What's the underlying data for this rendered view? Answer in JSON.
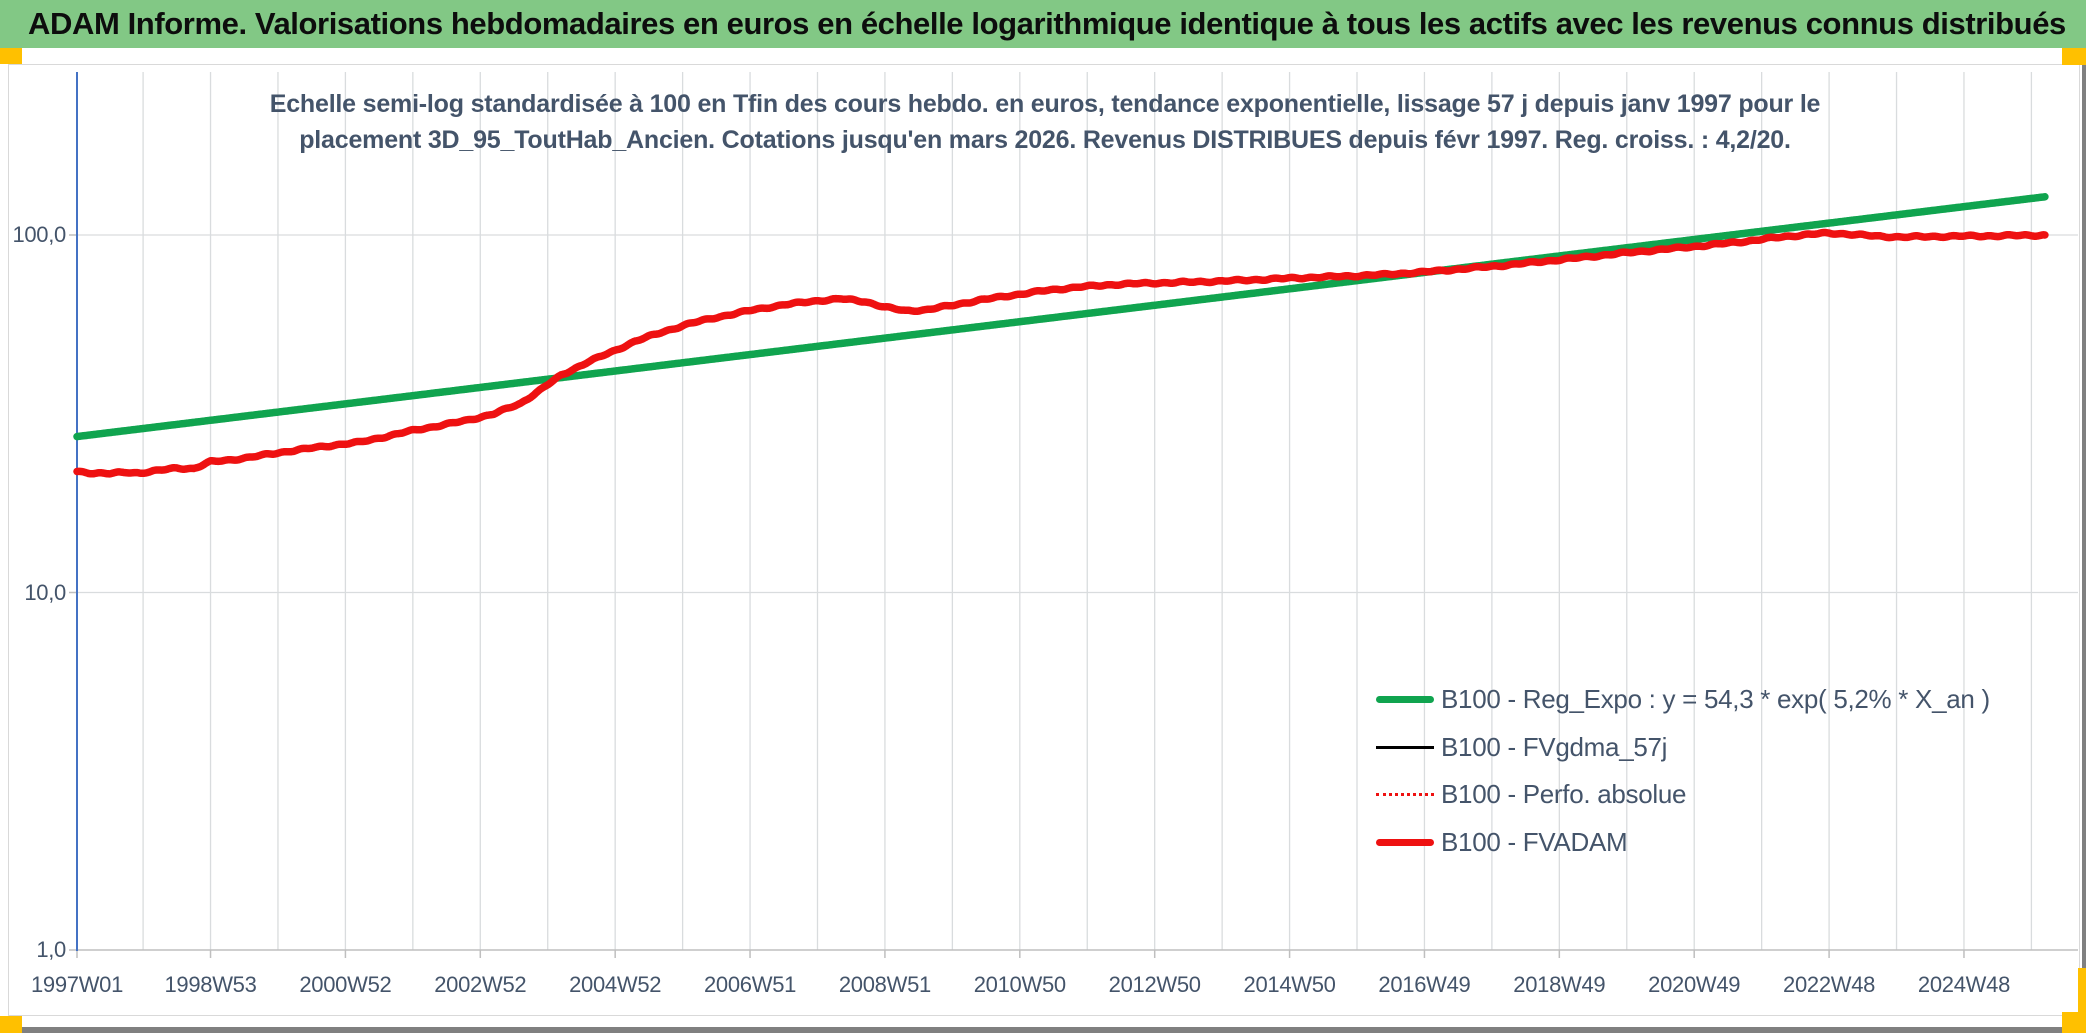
{
  "banner": {
    "text": "ADAM Informe. Valorisations hebdomadaires en euros en échelle logarithmique identique à tous les actifs avec les revenus connus distribués"
  },
  "title": {
    "line1": "Echelle semi-log standardisée à 100 en Tfin des cours hebdo. en euros, tendance exponentielle, lissage 57 j depuis janv 1997 pour le",
    "line2": "placement 3D_95_ToutHab_Ancien. Cotations jusqu'en mars 2026. Revenus DISTRIBUES depuis févr 1997. Reg. croiss. : 4,2/20."
  },
  "colors": {
    "banner_green": "#82C885",
    "accent_yellow": "#FFC000",
    "line_green": "#10A44F",
    "line_red": "#EE1111",
    "line_black": "#000000",
    "axis_blue": "#4472C4",
    "grid": "#D9DCDE",
    "tick": "#BFBFBF",
    "text": "#44546A",
    "chrome_gray": "#808080"
  },
  "chart_data": {
    "type": "line",
    "y_scale": "log",
    "y_ticks": [
      {
        "v": 100,
        "label": "100,0"
      },
      {
        "v": 10,
        "label": "10,0"
      },
      {
        "v": 1,
        "label": "1,0"
      }
    ],
    "x_ticks": [
      "1997W01",
      "1998W53",
      "2000W52",
      "2002W52",
      "2004W52",
      "2006W51",
      "2008W51",
      "2010W50",
      "2012W50",
      "2014W50",
      "2016W49",
      "2018W49",
      "2020W49",
      "2022W48",
      "2024W48"
    ],
    "x_tick_years": [
      1997.02,
      1999,
      2001,
      2003,
      2005,
      2007,
      2009,
      2011,
      2013,
      2015,
      2017,
      2019,
      2021,
      2023,
      2025
    ],
    "x_range": [
      1997.02,
      2026.2
    ],
    "gridline_years": [
      1998,
      2026
    ],
    "legend_position": "inside-right",
    "series": [
      {
        "name": "B100 - Reg_Expo : y = 54,3 * exp( 5,2% *  X_an )",
        "color": "#10A44F",
        "style": "solid",
        "width": 7.5,
        "noise": false,
        "points": [
          [
            1997.02,
            27.3
          ],
          [
            2026.2,
            127.9
          ]
        ]
      },
      {
        "name": "B100 - FVgdma_57j",
        "color": "#000000",
        "style": "solid",
        "width": 2.5,
        "noise": true,
        "same_as": "B100 - FVADAM"
      },
      {
        "name": "B100 - Perfo. absolue",
        "color": "#EE1111",
        "style": "dotted",
        "width": 2.5,
        "noise": true,
        "same_as": "B100 - FVADAM"
      },
      {
        "name": "B100 - FVADAM",
        "color": "#EE1111",
        "style": "solid",
        "width": 7.5,
        "noise": true,
        "points": [
          [
            1997.02,
            21.8
          ],
          [
            1997.25,
            21.6
          ],
          [
            1997.5,
            21.5
          ],
          [
            1997.75,
            21.7
          ],
          [
            1997.95,
            21.6
          ],
          [
            1998.2,
            21.9
          ],
          [
            1998.5,
            22.3
          ],
          [
            1998.75,
            22.2
          ],
          [
            1999.0,
            23.2
          ],
          [
            1999.3,
            23.5
          ],
          [
            1999.6,
            23.9
          ],
          [
            2000.0,
            24.6
          ],
          [
            2000.4,
            25.2
          ],
          [
            2000.8,
            25.8
          ],
          [
            2001.2,
            26.3
          ],
          [
            2001.6,
            27.3
          ],
          [
            2002.0,
            28.4
          ],
          [
            2002.4,
            29.3
          ],
          [
            2002.8,
            30.3
          ],
          [
            2003.2,
            31.6
          ],
          [
            2003.6,
            33.8
          ],
          [
            2003.9,
            37.0
          ],
          [
            2004.2,
            40.5
          ],
          [
            2004.6,
            44.2
          ],
          [
            2005.0,
            47.5
          ],
          [
            2005.3,
            50.5
          ],
          [
            2005.7,
            53.5
          ],
          [
            2006.1,
            56.5
          ],
          [
            2006.5,
            58.8
          ],
          [
            2007.0,
            61.5
          ],
          [
            2007.5,
            63.8
          ],
          [
            2008.0,
            65.5
          ],
          [
            2008.35,
            66.3
          ],
          [
            2008.7,
            65.2
          ],
          [
            2009.0,
            62.8
          ],
          [
            2009.3,
            61.4
          ],
          [
            2009.6,
            61.7
          ],
          [
            2010.0,
            63.6
          ],
          [
            2010.4,
            65.7
          ],
          [
            2010.9,
            67.9
          ],
          [
            2011.4,
            70.0
          ],
          [
            2011.9,
            71.6
          ],
          [
            2012.4,
            72.7
          ],
          [
            2012.9,
            73.3
          ],
          [
            2013.6,
            73.9
          ],
          [
            2014.3,
            74.7
          ],
          [
            2015.0,
            75.7
          ],
          [
            2015.7,
            76.5
          ],
          [
            2016.4,
            77.5
          ],
          [
            2017.0,
            78.8
          ],
          [
            2017.6,
            80.5
          ],
          [
            2018.2,
            82.3
          ],
          [
            2018.8,
            84.5
          ],
          [
            2019.4,
            86.8
          ],
          [
            2020.0,
            89.2
          ],
          [
            2020.6,
            91.4
          ],
          [
            2021.2,
            93.6
          ],
          [
            2021.8,
            96.2
          ],
          [
            2022.3,
            98.8
          ],
          [
            2022.7,
            100.4
          ],
          [
            2023.0,
            101.2
          ],
          [
            2023.3,
            100.6
          ],
          [
            2023.7,
            99.2
          ],
          [
            2024.1,
            98.7
          ],
          [
            2024.5,
            99.0
          ],
          [
            2025.0,
            99.3
          ],
          [
            2025.5,
            99.5
          ],
          [
            2026.0,
            99.8
          ],
          [
            2026.2,
            100.0
          ]
        ]
      }
    ]
  }
}
